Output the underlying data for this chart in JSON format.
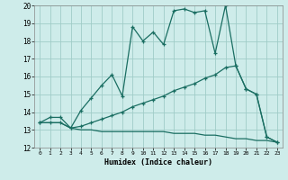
{
  "xlabel": "Humidex (Indice chaleur)",
  "xlim": [
    -0.5,
    23.5
  ],
  "ylim": [
    12,
    20
  ],
  "yticks": [
    12,
    13,
    14,
    15,
    16,
    17,
    18,
    19,
    20
  ],
  "xticks": [
    0,
    1,
    2,
    3,
    4,
    5,
    6,
    7,
    8,
    9,
    10,
    11,
    12,
    13,
    14,
    15,
    16,
    17,
    18,
    19,
    20,
    21,
    22,
    23
  ],
  "bg_color": "#ceecea",
  "grid_color": "#a0ccc8",
  "line_color": "#1a6e62",
  "line1_x": [
    0,
    1,
    2,
    3,
    4,
    5,
    6,
    7,
    8,
    9,
    10,
    11,
    12,
    13,
    14,
    15,
    16,
    17,
    18,
    19,
    20,
    21,
    22,
    23
  ],
  "line1_y": [
    13.4,
    13.7,
    13.7,
    13.1,
    14.1,
    14.8,
    15.5,
    16.1,
    14.9,
    18.8,
    18.0,
    18.5,
    17.8,
    19.7,
    19.8,
    19.6,
    19.7,
    17.3,
    20.0,
    16.6,
    15.3,
    15.0,
    12.6,
    12.3
  ],
  "line2_x": [
    0,
    1,
    2,
    3,
    4,
    5,
    6,
    7,
    8,
    9,
    10,
    11,
    12,
    13,
    14,
    15,
    16,
    17,
    18,
    19,
    20,
    21,
    22,
    23
  ],
  "line2_y": [
    13.4,
    13.4,
    13.4,
    13.1,
    13.2,
    13.4,
    13.6,
    13.8,
    14.0,
    14.3,
    14.5,
    14.7,
    14.9,
    15.2,
    15.4,
    15.6,
    15.9,
    16.1,
    16.5,
    16.6,
    15.3,
    15.0,
    12.6,
    12.3
  ],
  "line3_x": [
    0,
    1,
    2,
    3,
    4,
    5,
    6,
    7,
    8,
    9,
    10,
    11,
    12,
    13,
    14,
    15,
    16,
    17,
    18,
    19,
    20,
    21,
    22,
    23
  ],
  "line3_y": [
    13.4,
    13.4,
    13.4,
    13.1,
    13.0,
    13.0,
    12.9,
    12.9,
    12.9,
    12.9,
    12.9,
    12.9,
    12.9,
    12.8,
    12.8,
    12.8,
    12.7,
    12.7,
    12.6,
    12.5,
    12.5,
    12.4,
    12.4,
    12.3
  ]
}
